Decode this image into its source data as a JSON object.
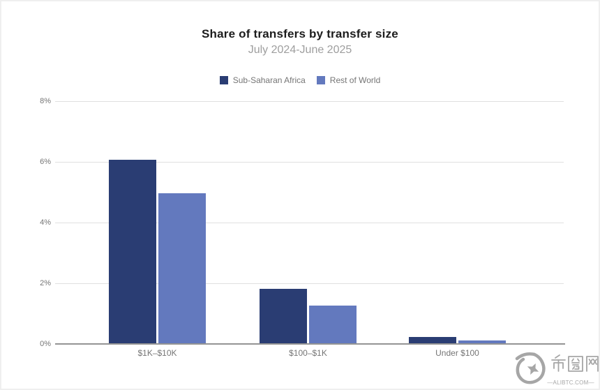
{
  "title": "Share of transfers by transfer size",
  "subtitle": "July 2024-June 2025",
  "chart_data": {
    "type": "bar",
    "categories": [
      "$1K–$10K",
      "$100–$1K",
      "Under $100"
    ],
    "series": [
      {
        "name": "Sub-Saharan Africa",
        "color": "#2a3d73",
        "values": [
          6.05,
          1.8,
          0.2
        ]
      },
      {
        "name": "Rest of World",
        "color": "#6379be",
        "values": [
          4.95,
          1.25,
          0.1
        ]
      }
    ],
    "ylim": [
      0,
      8
    ],
    "y_ticks": [
      "0%",
      "2%",
      "4%",
      "6%",
      "8%"
    ],
    "xlabel": "",
    "ylabel": "",
    "grid": true,
    "legend_position": "top"
  },
  "watermark": {
    "logo": "biquanwang-swirl-star-logo",
    "text": "币圈网",
    "domain": "—ALIBTC.COM—"
  }
}
